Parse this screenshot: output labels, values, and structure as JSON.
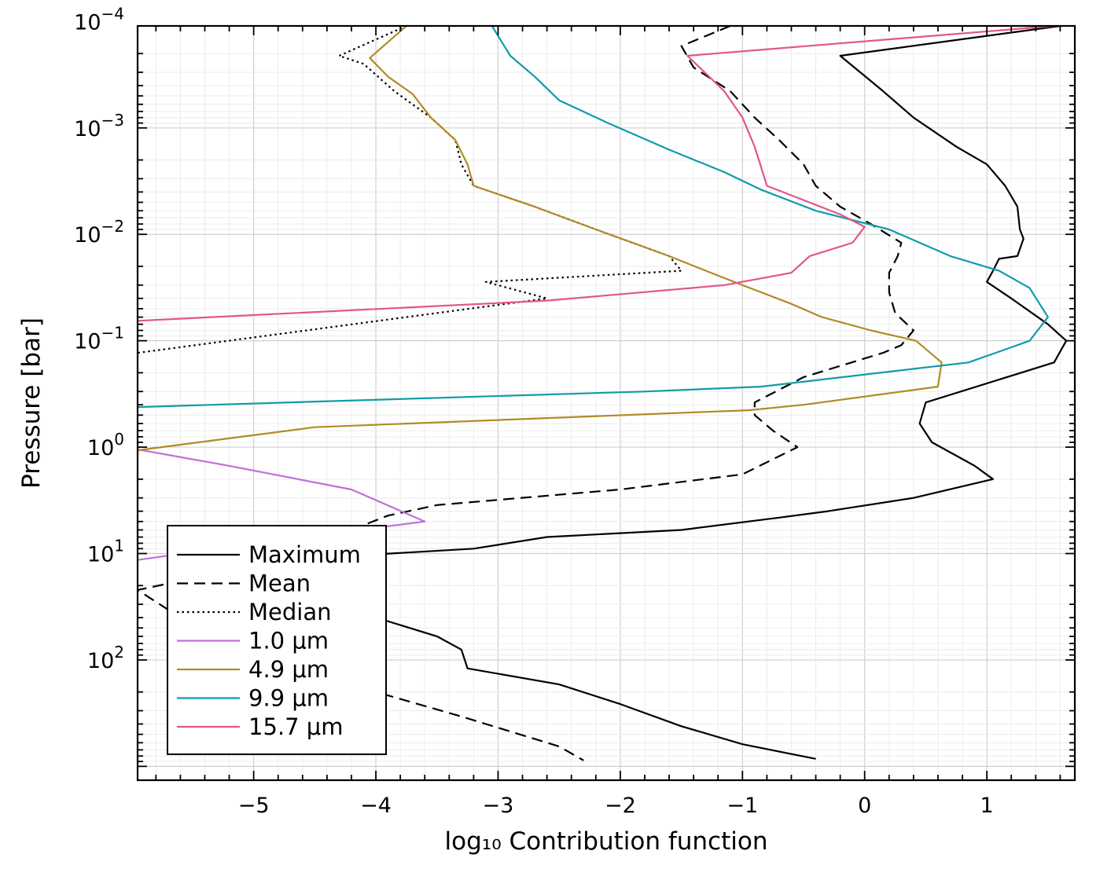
{
  "chart_data": {
    "type": "line",
    "xlabel": "log₁₀ Contribution function",
    "ylabel": "Pressure [bar]",
    "xlim": [
      -5.95,
      1.72
    ],
    "ylim": [
      0.00011,
      1350
    ],
    "y_scale": "log",
    "y_inverted": true,
    "grid": true,
    "legend_position": "bottom-left",
    "x_ticks": [
      {
        "value": -5,
        "label": "−5"
      },
      {
        "value": -4,
        "label": "−4"
      },
      {
        "value": -3,
        "label": "−3"
      },
      {
        "value": -2,
        "label": "−2"
      },
      {
        "value": -1,
        "label": "−1"
      },
      {
        "value": 0,
        "label": "0"
      },
      {
        "value": 1,
        "label": "1"
      }
    ],
    "y_ticks": [
      {
        "value": 0.0001,
        "base": "10",
        "exp": "−4"
      },
      {
        "value": 0.001,
        "base": "10",
        "exp": "−3"
      },
      {
        "value": 0.01,
        "base": "10",
        "exp": "−2"
      },
      {
        "value": 0.1,
        "base": "10",
        "exp": "−1"
      },
      {
        "value": 1,
        "base": "10",
        "exp": "0"
      },
      {
        "value": 10,
        "base": "10",
        "exp": "1"
      },
      {
        "value": 100,
        "base": "10",
        "exp": "2"
      }
    ],
    "series": [
      {
        "name": "Maximum",
        "color": "#000000",
        "dash": "solid",
        "points": [
          [
            1.6,
            0.00011
          ],
          [
            -0.2,
            0.00021
          ],
          [
            0.15,
            0.00045
          ],
          [
            0.4,
            0.0008
          ],
          [
            0.75,
            0.0015
          ],
          [
            1.0,
            0.0022
          ],
          [
            1.15,
            0.0035
          ],
          [
            1.25,
            0.0055
          ],
          [
            1.27,
            0.009
          ],
          [
            1.3,
            0.011
          ],
          [
            1.25,
            0.016
          ],
          [
            1.1,
            0.017
          ],
          [
            1.05,
            0.022
          ],
          [
            1.0,
            0.028
          ],
          [
            1.2,
            0.04
          ],
          [
            1.5,
            0.07
          ],
          [
            1.65,
            0.1
          ],
          [
            1.55,
            0.16
          ],
          [
            0.5,
            0.38
          ],
          [
            0.45,
            0.6
          ],
          [
            0.55,
            0.9
          ],
          [
            0.9,
            1.5
          ],
          [
            1.05,
            2.0
          ],
          [
            0.4,
            3.0
          ],
          [
            -0.3,
            4.0
          ],
          [
            -0.7,
            4.6
          ],
          [
            -1.5,
            6.0
          ],
          [
            -2.6,
            7.0
          ],
          [
            -3.2,
            9.0
          ],
          [
            -4.2,
            10.5
          ],
          [
            -4.6,
            17
          ],
          [
            -4.3,
            30
          ],
          [
            -4.0,
            40
          ],
          [
            -3.5,
            60
          ],
          [
            -3.3,
            80
          ],
          [
            -3.25,
            120
          ],
          [
            -2.5,
            170
          ],
          [
            -2.0,
            260
          ],
          [
            -1.5,
            420
          ],
          [
            -1.0,
            620
          ],
          [
            -0.4,
            850
          ]
        ]
      },
      {
        "name": "Mean",
        "color": "#000000",
        "dash": "dashed",
        "points": [
          [
            -1.1,
            0.00011
          ],
          [
            -1.5,
            0.00017
          ],
          [
            -1.4,
            0.00027
          ],
          [
            -1.1,
            0.00045
          ],
          [
            -0.9,
            0.0008
          ],
          [
            -0.7,
            0.0013
          ],
          [
            -0.5,
            0.0022
          ],
          [
            -0.4,
            0.0035
          ],
          [
            -0.2,
            0.0055
          ],
          [
            0.05,
            0.008
          ],
          [
            0.3,
            0.012
          ],
          [
            0.27,
            0.016
          ],
          [
            0.2,
            0.023
          ],
          [
            0.2,
            0.035
          ],
          [
            0.25,
            0.055
          ],
          [
            0.4,
            0.08
          ],
          [
            0.3,
            0.11
          ],
          [
            0.15,
            0.13
          ],
          [
            -0.5,
            0.22
          ],
          [
            -0.9,
            0.38
          ],
          [
            -0.9,
            0.5
          ],
          [
            -0.75,
            0.7
          ],
          [
            -0.55,
            1.0
          ],
          [
            -1.0,
            1.8
          ],
          [
            -2.0,
            2.5
          ],
          [
            -3.5,
            3.5
          ],
          [
            -3.9,
            4.4
          ],
          [
            -4.6,
            9.0
          ],
          [
            -5.0,
            13
          ],
          [
            -5.95,
            22
          ],
          [
            -5.6,
            40
          ],
          [
            -5.4,
            55
          ],
          [
            -4.7,
            110
          ],
          [
            -4.0,
            200
          ],
          [
            -3.3,
            340
          ],
          [
            -2.5,
            650
          ],
          [
            -2.3,
            880
          ]
        ]
      },
      {
        "name": "Median",
        "color": "#000000",
        "dash": "dotted",
        "points": [
          [
            -3.75,
            0.00011
          ],
          [
            -4.3,
            0.00021
          ],
          [
            -4.1,
            0.00025
          ],
          [
            -3.85,
            0.00045
          ],
          [
            -3.55,
            0.0008
          ],
          [
            -3.35,
            0.0013
          ],
          [
            -3.3,
            0.0022
          ],
          [
            -3.2,
            0.0035
          ],
          [
            -2.7,
            0.0055
          ],
          [
            -2.2,
            0.009
          ],
          [
            -1.6,
            0.016
          ],
          [
            -1.5,
            0.022
          ],
          [
            -3.1,
            0.028
          ],
          [
            -2.6,
            0.04
          ],
          [
            -5.95,
            0.13
          ]
        ]
      },
      {
        "name": "1.0 μm",
        "color": "#c06fdb",
        "dash": "solid",
        "points": [
          [
            -5.95,
            1.05
          ],
          [
            -5.2,
            1.5
          ],
          [
            -4.2,
            2.5
          ],
          [
            -3.6,
            5.0
          ],
          [
            -5.3,
            9.0
          ],
          [
            -5.95,
            11.5
          ]
        ]
      },
      {
        "name": "4.9 μm",
        "color": "#b18b23",
        "dash": "solid",
        "points": [
          [
            -3.75,
            0.00011
          ],
          [
            -4.05,
            0.00022
          ],
          [
            -3.9,
            0.00033
          ],
          [
            -3.7,
            0.00048
          ],
          [
            -3.55,
            0.0008
          ],
          [
            -3.35,
            0.0013
          ],
          [
            -3.25,
            0.0022
          ],
          [
            -3.2,
            0.0035
          ],
          [
            -2.7,
            0.0055
          ],
          [
            -2.2,
            0.009
          ],
          [
            -1.6,
            0.016
          ],
          [
            -1.3,
            0.022
          ],
          [
            -1.0,
            0.03
          ],
          [
            -0.6,
            0.045
          ],
          [
            -0.35,
            0.06
          ],
          [
            0.05,
            0.08
          ],
          [
            0.42,
            0.1
          ],
          [
            0.63,
            0.16
          ],
          [
            0.6,
            0.27
          ],
          [
            -0.5,
            0.4
          ],
          [
            -0.95,
            0.45
          ],
          [
            -4.5,
            0.65
          ],
          [
            -5.95,
            1.07
          ]
        ]
      },
      {
        "name": "9.9 μm",
        "color": "#109ca6",
        "dash": "solid",
        "points": [
          [
            -3.05,
            0.00011
          ],
          [
            -2.9,
            0.00021
          ],
          [
            -2.7,
            0.00033
          ],
          [
            -2.5,
            0.00055
          ],
          [
            -2.1,
            0.0009
          ],
          [
            -1.6,
            0.0016
          ],
          [
            -1.15,
            0.0026
          ],
          [
            -0.85,
            0.0038
          ],
          [
            -0.4,
            0.006
          ],
          [
            0.2,
            0.009
          ],
          [
            0.7,
            0.016
          ],
          [
            1.1,
            0.022
          ],
          [
            1.35,
            0.032
          ],
          [
            1.5,
            0.06
          ],
          [
            1.35,
            0.1
          ],
          [
            0.85,
            0.16
          ],
          [
            -0.85,
            0.27
          ],
          [
            -1.8,
            0.3
          ],
          [
            -5.95,
            0.42
          ]
        ]
      },
      {
        "name": "15.7 μm",
        "color": "#e2558c",
        "dash": "solid",
        "points": [
          [
            1.55,
            0.00011
          ],
          [
            -1.45,
            0.00021
          ],
          [
            -1.15,
            0.00045
          ],
          [
            -1.0,
            0.0008
          ],
          [
            -0.9,
            0.0015
          ],
          [
            -0.8,
            0.0035
          ],
          [
            -0.2,
            0.0065
          ],
          [
            0.0,
            0.0085
          ],
          [
            -0.1,
            0.012
          ],
          [
            -0.45,
            0.016
          ],
          [
            -0.6,
            0.023
          ],
          [
            -1.15,
            0.03
          ],
          [
            -2.6,
            0.042
          ],
          [
            -5.95,
            0.065
          ]
        ]
      }
    ]
  }
}
